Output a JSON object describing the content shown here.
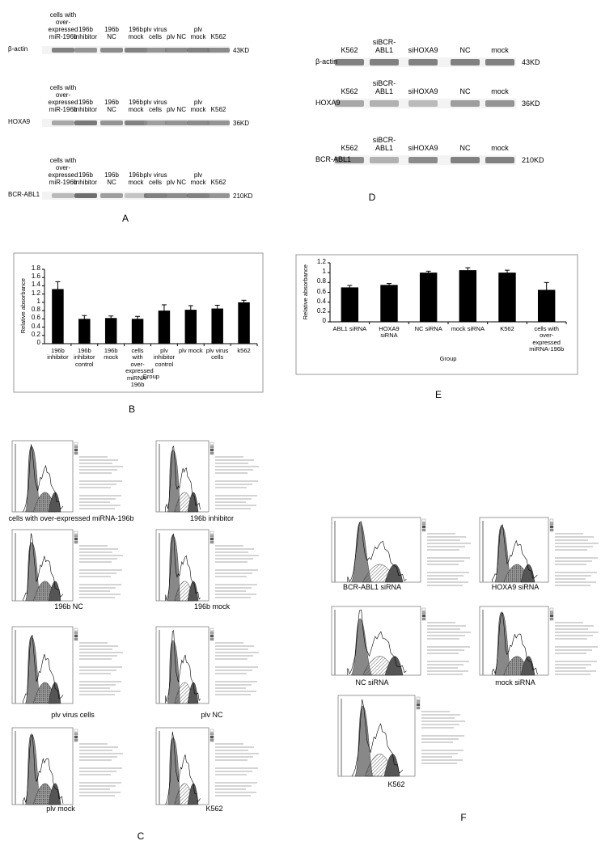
{
  "panel_labels": [
    "A",
    "B",
    "C",
    "D",
    "E",
    "F"
  ],
  "blots_A": {
    "lanes": [
      "cells with over-expressed miR-196b",
      "196b inhibitor",
      "196b NC",
      "196b mock",
      "plv virus cells",
      "plv NC",
      "plv mock",
      "K562"
    ],
    "rows": [
      {
        "protein": "β-actin",
        "size": "43KD"
      },
      {
        "protein": "HOXA9",
        "size": "36KD"
      },
      {
        "protein": "BCR-ABL1",
        "size": "210KD"
      }
    ]
  },
  "blots_D": {
    "lanes": [
      "K562",
      "siBCR-ABL1",
      "siHOXA9",
      "NC",
      "mock"
    ],
    "rows": [
      {
        "protein": "β-actin",
        "size": "43KD"
      },
      {
        "protein": "HOXA9",
        "size": "36KD"
      },
      {
        "protein": "BCR-ABL1",
        "size": "210KD"
      }
    ]
  },
  "chart_data": [
    {
      "type": "bar",
      "ylabel": "Relative absorbance",
      "xlabel": "Group",
      "categories": [
        "196b inhibitor",
        "196b inhibitor control",
        "196b mock",
        "cells with over-expressed miRNA-196b",
        "plv inhibitor control",
        "plv mock",
        "plv virus cells",
        "k562"
      ],
      "values": [
        1.32,
        0.6,
        0.62,
        0.6,
        0.8,
        0.82,
        0.85,
        1.0
      ],
      "errors": [
        0.18,
        0.08,
        0.05,
        0.06,
        0.14,
        0.1,
        0.08,
        0.05
      ],
      "ylim": [
        0,
        1.8
      ],
      "yticks": [
        0,
        0.2,
        0.4,
        0.6,
        0.8,
        1,
        1.2,
        1.4,
        1.6,
        1.8
      ],
      "color": "#000000"
    },
    {
      "type": "bar",
      "ylabel": "Relative absorbance",
      "xlabel": "Group",
      "categories": [
        "ABL1 siRNA",
        "HOXA9 siRNA",
        "NC siRNA",
        "mock siRNA",
        "K562",
        "cells with over-expressed miRNA-196b"
      ],
      "values": [
        0.7,
        0.75,
        1.0,
        1.05,
        1.0,
        0.65
      ],
      "errors": [
        0.04,
        0.03,
        0.03,
        0.05,
        0.05,
        0.15
      ],
      "ylim": [
        0,
        1.2
      ],
      "yticks": [
        0,
        0.2,
        0.4,
        0.6,
        0.8,
        1,
        1.2
      ],
      "color": "#000000"
    }
  ],
  "flow_C": {
    "captions": [
      "cells with over-expressed miRNA-196b",
      "196b inhibitor",
      "196b NC",
      "196b mock",
      "plv virus cells",
      "plv NC",
      "plv mock",
      "K562"
    ]
  },
  "flow_F": {
    "captions": [
      "BCR-ABL1 siRNA",
      "HOXA9 siRNA",
      "NC siRNA",
      "mock siRNA",
      "K562"
    ]
  }
}
